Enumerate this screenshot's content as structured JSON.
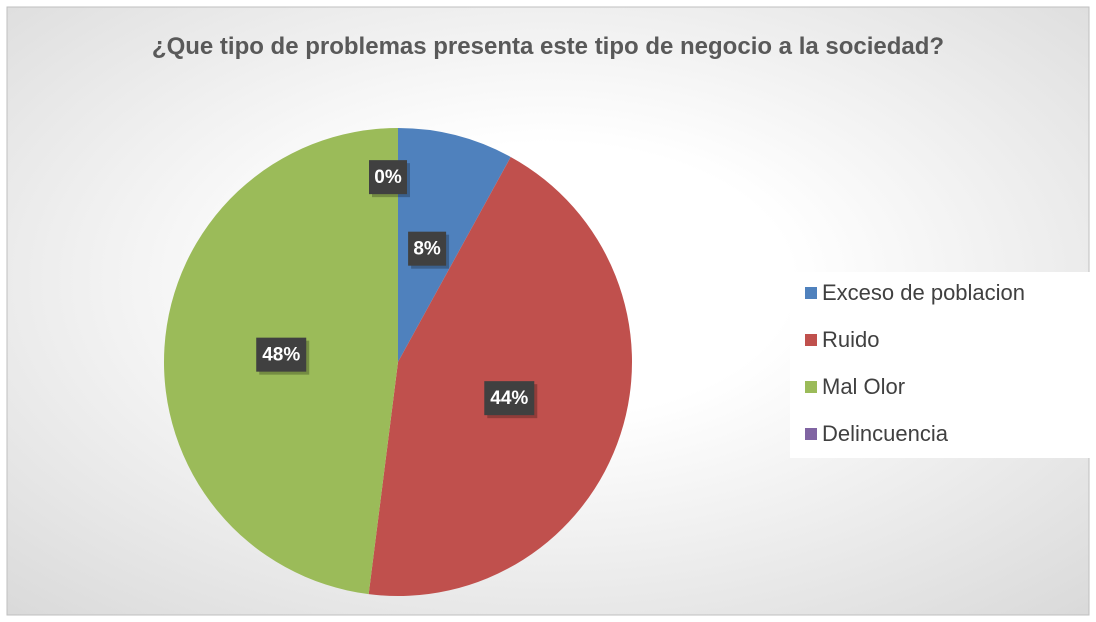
{
  "chart_data": {
    "type": "pie",
    "title": "¿Que tipo de problemas presenta este tipo de negocio a la sociedad?",
    "categories": [
      "Exceso de poblacion",
      "Ruido",
      "Mal Olor",
      "Delincuencia"
    ],
    "values": [
      8,
      44,
      48,
      0
    ],
    "value_labels": [
      "8%",
      "44%",
      "48%",
      "0%"
    ],
    "colors": [
      "#4f81bd",
      "#c0504d",
      "#9bbb59",
      "#8064a2"
    ],
    "legend": "right"
  }
}
